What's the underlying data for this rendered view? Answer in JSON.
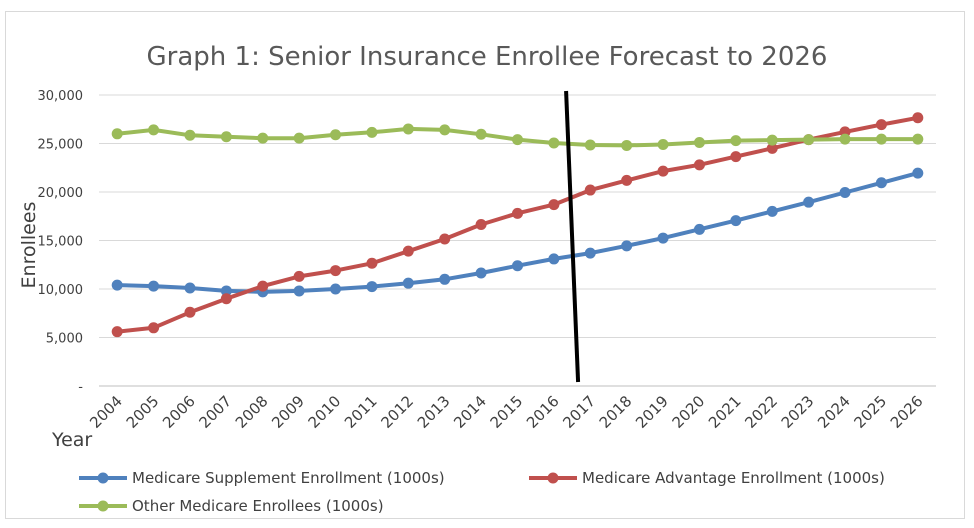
{
  "chart_data": {
    "type": "line",
    "title": "Graph 1: Senior Insurance Enrollee Forecast to 2026",
    "xlabel": "Year",
    "ylabel": "Enrollees",
    "categories": [
      "2004",
      "2005",
      "2006",
      "2007",
      "2008",
      "2009",
      "2010",
      "2011",
      "2012",
      "2013",
      "2014",
      "2015",
      "2016",
      "2017",
      "2018",
      "2019",
      "2020",
      "2021",
      "2022",
      "2023",
      "2024",
      "2025",
      "2026"
    ],
    "ylim": [
      0,
      30000
    ],
    "yticks": [
      {
        "value": 0,
        "label": "-"
      },
      {
        "value": 5000,
        "label": "5,000"
      },
      {
        "value": 10000,
        "label": "10,000"
      },
      {
        "value": 15000,
        "label": "15,000"
      },
      {
        "value": 20000,
        "label": "20,000"
      },
      {
        "value": 25000,
        "label": "25,000"
      },
      {
        "value": 30000,
        "label": "30,000"
      }
    ],
    "grid": true,
    "legend_position": "bottom",
    "forecast_divider_between": [
      "2016",
      "2017"
    ],
    "series": [
      {
        "name": "Medicare Supplement Enrollment (1000s)",
        "color": "#4f81bd",
        "values": [
          10400,
          10300,
          10100,
          9800,
          9700,
          9800,
          10000,
          10250,
          10600,
          11000,
          11650,
          12400,
          13100,
          13700,
          14450,
          15250,
          16150,
          17050,
          18000,
          18950,
          19950,
          20950,
          21950
        ]
      },
      {
        "name": "Medicare Advantage Enrollment (1000s)",
        "color": "#c0504d",
        "values": [
          5600,
          6000,
          7600,
          9000,
          10300,
          11300,
          11900,
          12650,
          13900,
          15150,
          16650,
          17800,
          18700,
          20200,
          21200,
          22150,
          22800,
          23650,
          24500,
          25400,
          26200,
          26950,
          27650
        ]
      },
      {
        "name": "Other Medicare Enrollees (1000s)",
        "color": "#9bbb59",
        "values": [
          26000,
          26400,
          25850,
          25700,
          25550,
          25550,
          25900,
          26150,
          26500,
          26400,
          25950,
          25400,
          25050,
          24850,
          24800,
          24900,
          25100,
          25300,
          25350,
          25400,
          25450,
          25450,
          25450
        ]
      }
    ]
  }
}
